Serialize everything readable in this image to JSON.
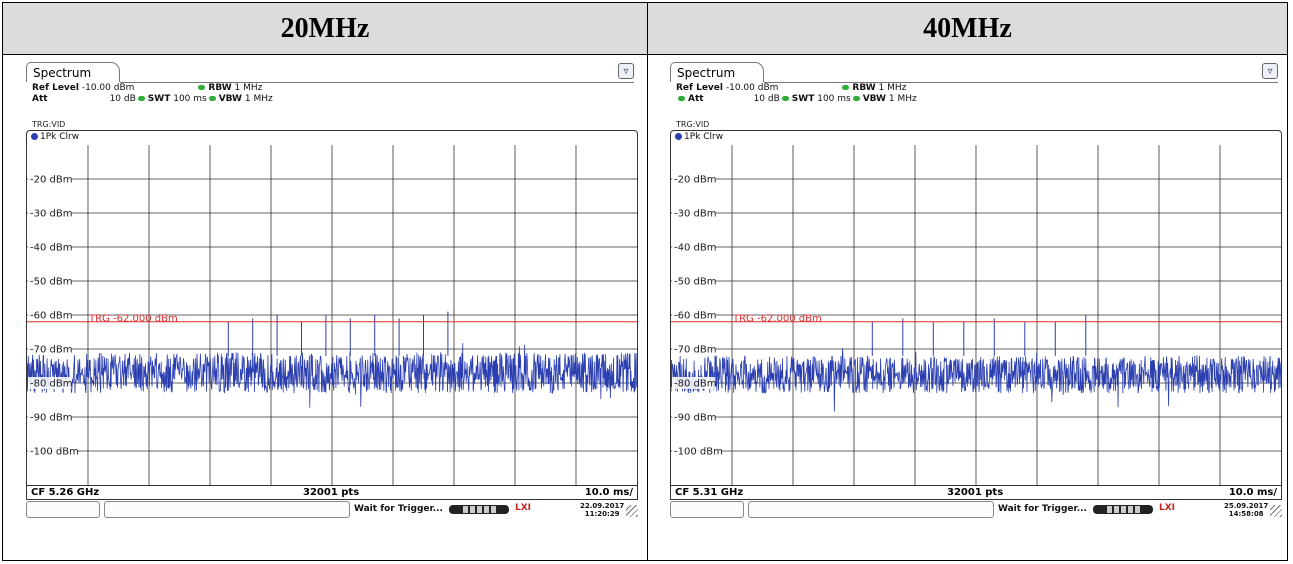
{
  "panels": [
    {
      "header": "20MHz",
      "tab_label": "Spectrum",
      "ref_level_label": "Ref Level",
      "ref_level_value": "-10.00 dBm",
      "att_label": "Att",
      "att_value": "10 dB",
      "swt_label": "SWT",
      "swt_value": "100 ms",
      "rbw_label": "RBW",
      "rbw_value": "1 MHz",
      "vbw_label": "VBW",
      "vbw_value": "1 MHz",
      "trg_label": "TRG:VID",
      "trace_label": "1Pk Clrw",
      "y_labels": [
        "-20 dBm",
        "-30 dBm",
        "-40 dBm",
        "-50 dBm",
        "-60 dBm",
        "-70 dBm",
        "-80 dBm",
        "-90 dBm",
        "-100 dBm"
      ],
      "trigger_line_label": "TRG -62.000 dBm",
      "cf_label": "CF 5.26 GHz",
      "pts_label": "32001 pts",
      "span_label": "10.0 ms/",
      "status_text": "Wait for Trigger...",
      "lxi_label": "LXI",
      "date": "22.09.2017",
      "time": "11:20:29"
    },
    {
      "header": "40MHz",
      "tab_label": "Spectrum",
      "ref_level_label": "Ref Level",
      "ref_level_value": "-10.00 dBm",
      "att_label": "Att",
      "att_value": "10 dB",
      "swt_label": "SWT",
      "swt_value": "100 ms",
      "rbw_label": "RBW",
      "rbw_value": "1 MHz",
      "vbw_label": "VBW",
      "vbw_value": "1 MHz",
      "trg_label": "TRG:VID",
      "trace_label": "1Pk Clrw",
      "y_labels": [
        "-20 dBm",
        "-30 dBm",
        "-40 dBm",
        "-50 dBm",
        "-60 dBm",
        "-70 dBm",
        "-80 dBm",
        "-90 dBm",
        "-100 dBm"
      ],
      "trigger_line_label": "TRG -62.000 dBm",
      "cf_label": "CF 5.31 GHz",
      "pts_label": "32001 pts",
      "span_label": "10.0 ms/",
      "status_text": "Wait for Trigger...",
      "lxi_label": "LXI",
      "date": "25.09.2017",
      "time": "14:58:08"
    }
  ],
  "chart_data": [
    {
      "type": "line",
      "x_unit": "ms",
      "x_divisions": 10,
      "x_per_division": 10.0,
      "ylim": [
        -110,
        -10
      ],
      "y_unit": "dBm",
      "trigger_level": -62.0,
      "noise_floor_range": [
        -83,
        -71
      ],
      "spikes_dbm": [
        -62,
        -61,
        -60,
        -62,
        -60,
        -61,
        -60,
        -61,
        -60,
        -59
      ],
      "trace_color": "#2c3fb0",
      "trigger_color": "#e03030"
    },
    {
      "type": "line",
      "x_unit": "ms",
      "x_divisions": 10,
      "x_per_division": 10.0,
      "ylim": [
        -110,
        -10
      ],
      "y_unit": "dBm",
      "trigger_level": -62.0,
      "noise_floor_range": [
        -83,
        -72
      ],
      "spikes_dbm": [
        -62,
        -61,
        -62,
        -62,
        -61,
        -62,
        -62,
        -60
      ],
      "trace_color": "#2c3fb0",
      "trigger_color": "#e03030"
    }
  ]
}
